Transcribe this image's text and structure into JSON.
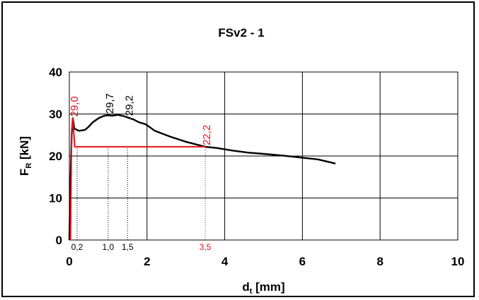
{
  "chart_data": {
    "type": "line",
    "title": "FSv2 - 1",
    "xlabel": {
      "main": "d",
      "sub": "t",
      "unit": " [mm]"
    },
    "ylabel": {
      "main": "F",
      "sub": "R",
      "unit": " [kN]"
    },
    "xlim": [
      0,
      10
    ],
    "ylim": [
      0,
      40
    ],
    "xticks": [
      "0",
      "2",
      "4",
      "6",
      "8",
      "10"
    ],
    "yticks": [
      "0",
      "10",
      "20",
      "30",
      "40"
    ],
    "grid": true,
    "colors": {
      "curve": "#000000",
      "highlight": "#e8101a",
      "grid": "#000000"
    },
    "series": [
      {
        "color": "#000000",
        "points": [
          [
            0.0,
            0.0
          ],
          [
            0.03,
            14.0
          ],
          [
            0.06,
            25.0
          ],
          [
            0.09,
            29.0
          ],
          [
            0.13,
            26.5
          ],
          [
            0.25,
            26.0
          ],
          [
            0.4,
            26.2
          ],
          [
            0.5,
            27.0
          ],
          [
            0.6,
            28.0
          ],
          [
            0.75,
            29.0
          ],
          [
            0.9,
            29.6
          ],
          [
            1.0,
            29.7
          ],
          [
            1.1,
            29.6
          ],
          [
            1.25,
            29.8
          ],
          [
            1.4,
            29.5
          ],
          [
            1.5,
            29.2
          ],
          [
            1.65,
            28.7
          ],
          [
            1.8,
            28.0
          ],
          [
            1.95,
            27.6
          ],
          [
            2.05,
            27.0
          ],
          [
            2.2,
            26.0
          ],
          [
            2.4,
            25.3
          ],
          [
            2.6,
            24.6
          ],
          [
            2.8,
            24.0
          ],
          [
            3.0,
            23.4
          ],
          [
            3.2,
            22.9
          ],
          [
            3.5,
            22.2
          ],
          [
            3.8,
            21.9
          ],
          [
            4.2,
            21.3
          ],
          [
            4.6,
            20.8
          ],
          [
            5.0,
            20.5
          ],
          [
            5.5,
            20.1
          ],
          [
            6.0,
            19.6
          ],
          [
            6.4,
            19.2
          ],
          [
            6.85,
            18.2
          ]
        ]
      },
      {
        "color": "#e8101a",
        "points": [
          [
            0.03,
            0.0
          ],
          [
            0.06,
            26.0
          ],
          [
            0.09,
            29.0
          ],
          [
            0.14,
            22.2
          ],
          [
            3.5,
            22.2
          ]
        ]
      }
    ],
    "annotations": [
      {
        "x": 0.09,
        "y": 29.0,
        "text": "29,0",
        "color": "#e8101a"
      },
      {
        "x": 1.0,
        "y": 29.7,
        "text": "29,7",
        "color": "#000000"
      },
      {
        "x": 1.5,
        "y": 29.2,
        "text": "29,2",
        "color": "#000000"
      },
      {
        "x": 3.5,
        "y": 22.2,
        "text": "22,2",
        "color": "#e8101a"
      }
    ],
    "marker_lines": [
      {
        "x": 0.2,
        "label": "0,2",
        "color": "#000000"
      },
      {
        "x": 1.0,
        "label": "1,0",
        "color": "#000000"
      },
      {
        "x": 1.5,
        "label": "1,5",
        "color": "#000000"
      },
      {
        "x": 3.5,
        "label": "3,5",
        "color": "#e8101a"
      }
    ]
  }
}
